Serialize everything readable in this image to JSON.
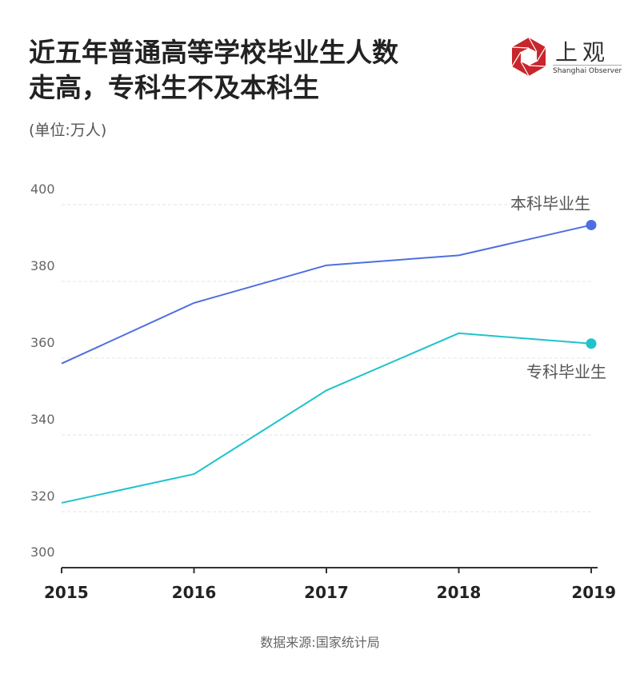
{
  "title_lines": [
    "近五年普通高等学校毕业生人数",
    "走高，专科生不及本科生"
  ],
  "unit": "(单位:万人)",
  "source": "数据来源:国家统计局",
  "logo": {
    "cn": "上观",
    "en": "Shanghai Observer",
    "color": "#c8262c"
  },
  "chart_data": {
    "type": "line",
    "x": [
      "2015",
      "2016",
      "2017",
      "2018",
      "2019"
    ],
    "ylim": [
      300,
      400
    ],
    "yticks": [
      400,
      380,
      360,
      340,
      320,
      300
    ],
    "grid": true,
    "series": [
      {
        "name": "本科毕业生",
        "color": "#4e6fe0",
        "values": [
          358.6,
          374.4,
          384.2,
          386.8,
          394.7
        ]
      },
      {
        "name": "专科毕业生",
        "color": "#1ec3cc",
        "values": [
          322.3,
          329.8,
          351.6,
          366.5,
          363.8
        ]
      }
    ]
  }
}
